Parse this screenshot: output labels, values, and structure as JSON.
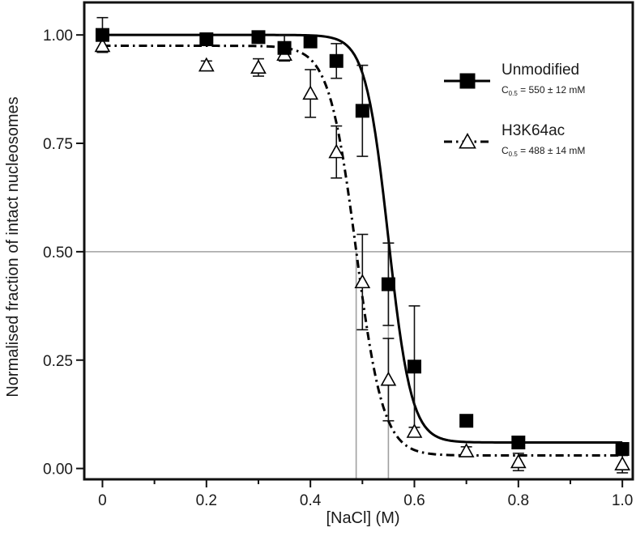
{
  "chart_data": {
    "type": "scatter",
    "xlabel": "[NaCl] (M)",
    "ylabel": "Normalised fraction of intact nucleosomes",
    "xlim": [
      -0.035,
      1.02
    ],
    "ylim": [
      -0.025,
      1.075
    ],
    "x_ticks": [
      0,
      0.2,
      0.4,
      0.6,
      0.8,
      1.0
    ],
    "x_tick_labels": [
      "0",
      "0.2",
      "0.4",
      "0.6",
      "0.8",
      "1.0"
    ],
    "x_minor_ticks": [
      0.1,
      0.3,
      0.5,
      0.7,
      0.9
    ],
    "y_ticks": [
      0,
      0.25,
      0.5,
      0.75,
      1.0
    ],
    "y_tick_labels": [
      "0.00",
      "0.25",
      "0.50",
      "0.75",
      "1.00"
    ],
    "reference_lines": {
      "horizontal_y": 0.5,
      "vertical_x": [
        0.488,
        0.55
      ]
    },
    "legend_position": "top-right",
    "series": [
      {
        "name": "Unmodified",
        "marker": "filled-square",
        "line_style": "solid",
        "c05_prefix": "C",
        "c05_subscript": "0.5",
        "c05_value": " = 550 ± 12 mM",
        "x": [
          0,
          0.2,
          0.3,
          0.35,
          0.4,
          0.45,
          0.5,
          0.55,
          0.6,
          0.7,
          0.8,
          1.0
        ],
        "y": [
          1.0,
          0.99,
          0.995,
          0.97,
          0.985,
          0.94,
          0.825,
          0.425,
          0.235,
          0.11,
          0.06,
          0.045
        ],
        "err": [
          0.04,
          0.01,
          0.01,
          0.03,
          0.01,
          0.04,
          0.105,
          0.095,
          0.14,
          0.01,
          0.01,
          0.01
        ],
        "fit": {
          "bottom": 0.06,
          "top": 1.0,
          "c05": 0.55,
          "slope": 0.022
        }
      },
      {
        "name": "H3K64ac",
        "marker": "open-triangle",
        "line_style": "dash-dot",
        "c05_prefix": "C",
        "c05_subscript": "0.5",
        "c05_value": " = 488 ± 14 mM",
        "x": [
          0,
          0.2,
          0.3,
          0.35,
          0.4,
          0.45,
          0.5,
          0.55,
          0.6,
          0.7,
          0.8,
          1.0
        ],
        "y": [
          0.975,
          0.93,
          0.925,
          0.955,
          0.865,
          0.73,
          0.43,
          0.205,
          0.085,
          0.04,
          0.015,
          0.01
        ],
        "err": [
          0.015,
          0.01,
          0.02,
          0.015,
          0.055,
          0.06,
          0.11,
          0.095,
          0.01,
          0.01,
          0.02,
          0.02
        ],
        "fit": {
          "bottom": 0.03,
          "top": 0.975,
          "c05": 0.488,
          "slope": 0.026
        }
      }
    ]
  }
}
